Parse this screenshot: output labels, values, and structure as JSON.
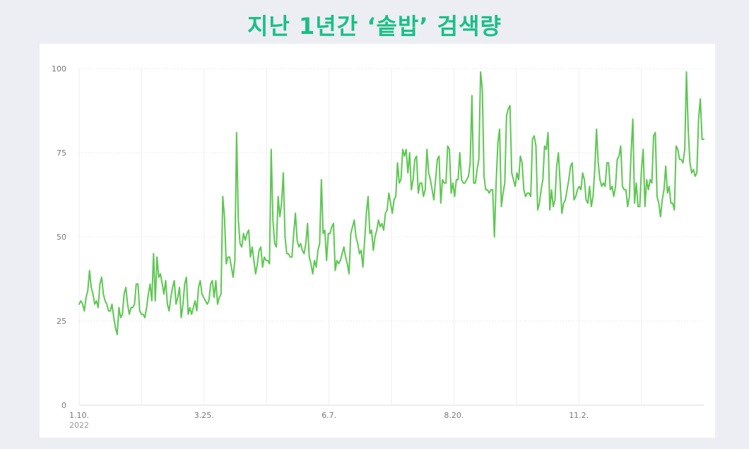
{
  "title": "지난 1년간 ‘솥밥’ 검색량",
  "chart_data": {
    "type": "line",
    "title": "지난 1년간 ‘솥밥’ 검색량",
    "xlabel": "",
    "ylabel": "",
    "ylim": [
      0,
      100
    ],
    "y_ticks": [
      "0",
      "25",
      "50",
      "75",
      "100"
    ],
    "x_tick_labels": [
      {
        "label": "1.10.",
        "sub": "2022",
        "index": 0
      },
      {
        "label": "3.25.",
        "index": 74
      },
      {
        "label": "6.7.",
        "index": 148
      },
      {
        "label": "8.20.",
        "index": 222
      },
      {
        "label": "11.2.",
        "index": 296
      }
    ],
    "grid": true,
    "line_color": "#5cc750",
    "series": [
      {
        "values": [
          30,
          31,
          30,
          28,
          32,
          34,
          40,
          35,
          33,
          30,
          31,
          29,
          36,
          38,
          33,
          31,
          30,
          28,
          28,
          30,
          26,
          23,
          21,
          29,
          26,
          27,
          33,
          35,
          30,
          27,
          29,
          29,
          30,
          36,
          36,
          28,
          27,
          27,
          26,
          29,
          33,
          36,
          31,
          45,
          31,
          44,
          38,
          39,
          36,
          33,
          37,
          30,
          28,
          32,
          35,
          37,
          30,
          32,
          35,
          26,
          30,
          36,
          38,
          27,
          29,
          27,
          29,
          31,
          28,
          35,
          37,
          33,
          32,
          31,
          30,
          31,
          36,
          37,
          32,
          37,
          30,
          32,
          33,
          62,
          56,
          42,
          44,
          44,
          41,
          38,
          43,
          81,
          55,
          48,
          47,
          51,
          49,
          51,
          52,
          44,
          47,
          43,
          39,
          42,
          46,
          47,
          41,
          44,
          43,
          43,
          42,
          76,
          55,
          48,
          47,
          62,
          56,
          60,
          69,
          50,
          45,
          45,
          44,
          44,
          51,
          57,
          49,
          47,
          48,
          46,
          45,
          48,
          54,
          44,
          42,
          39,
          43,
          41,
          46,
          48,
          67,
          51,
          52,
          43,
          51,
          51,
          53,
          54,
          40,
          43,
          42,
          43,
          45,
          47,
          44,
          42,
          39,
          51,
          53,
          55,
          50,
          48,
          45,
          46,
          41,
          49,
          57,
          62,
          51,
          52,
          46,
          50,
          52,
          55,
          53,
          54,
          52,
          57,
          58,
          63,
          60,
          57,
          61,
          62,
          72,
          66,
          67,
          76,
          74,
          76,
          69,
          75,
          64,
          67,
          73,
          74,
          63,
          66,
          66,
          62,
          64,
          76,
          69,
          67,
          64,
          61,
          67,
          73,
          74,
          60,
          67,
          66,
          66,
          77,
          76,
          63,
          66,
          62,
          67,
          67,
          75,
          67,
          66,
          66,
          67,
          68,
          72,
          92,
          66,
          66,
          70,
          73,
          99,
          94,
          68,
          64,
          64,
          63,
          64,
          64,
          50,
          66,
          78,
          82,
          59,
          63,
          66,
          86,
          88,
          89,
          69,
          67,
          65,
          69,
          67,
          74,
          72,
          64,
          62,
          63,
          63,
          62,
          79,
          80,
          77,
          58,
          60,
          64,
          67,
          77,
          76,
          81,
          58,
          64,
          59,
          61,
          71,
          75,
          66,
          57,
          60,
          61,
          64,
          67,
          71,
          72,
          61,
          62,
          64,
          65,
          64,
          69,
          67,
          61,
          60,
          65,
          59,
          62,
          70,
          82,
          72,
          67,
          65,
          66,
          65,
          72,
          72,
          64,
          65,
          62,
          65,
          73,
          74,
          77,
          65,
          64,
          64,
          59,
          62,
          75,
          85,
          60,
          66,
          59,
          59,
          70,
          76,
          59,
          67,
          64,
          67,
          66,
          80,
          81,
          62,
          60,
          56,
          61,
          64,
          71,
          63,
          65,
          60,
          60,
          58,
          77,
          76,
          73,
          73,
          72,
          76,
          99,
          82,
          72,
          69,
          70,
          68,
          69,
          85,
          91,
          79,
          79
        ]
      }
    ]
  }
}
